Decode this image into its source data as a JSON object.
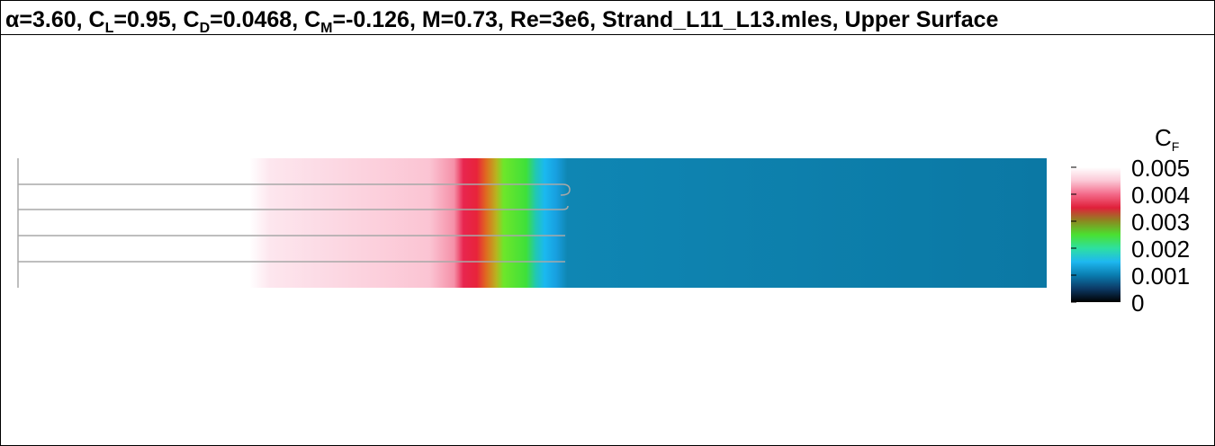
{
  "chart_data": {
    "type": "contour",
    "title": [
      {
        "text": "α=3.60, C"
      },
      {
        "sub": "L"
      },
      {
        "text": "=0.95, C"
      },
      {
        "sub": "D"
      },
      {
        "text": "=0.0468, C"
      },
      {
        "sub": "M"
      },
      {
        "text": "=-0.126, M=0.73, Re=3e6, Strand_L11_L13.mles, Upper Surface"
      }
    ],
    "colorbar_label": [
      {
        "text": "C"
      },
      {
        "sub": "F"
      }
    ],
    "clim": [
      0,
      0.005
    ],
    "cticks": [
      0,
      0.001,
      0.002,
      0.003,
      0.004,
      0.005
    ],
    "colormap": [
      "#000000",
      "#0c3a66",
      "#0a7db0",
      "#1eb8f0",
      "#2ee0a0",
      "#4ae030",
      "#8a8a20",
      "#e0203a",
      "#f46a8a",
      "#fbc8d6",
      "#ffffff"
    ]
  }
}
